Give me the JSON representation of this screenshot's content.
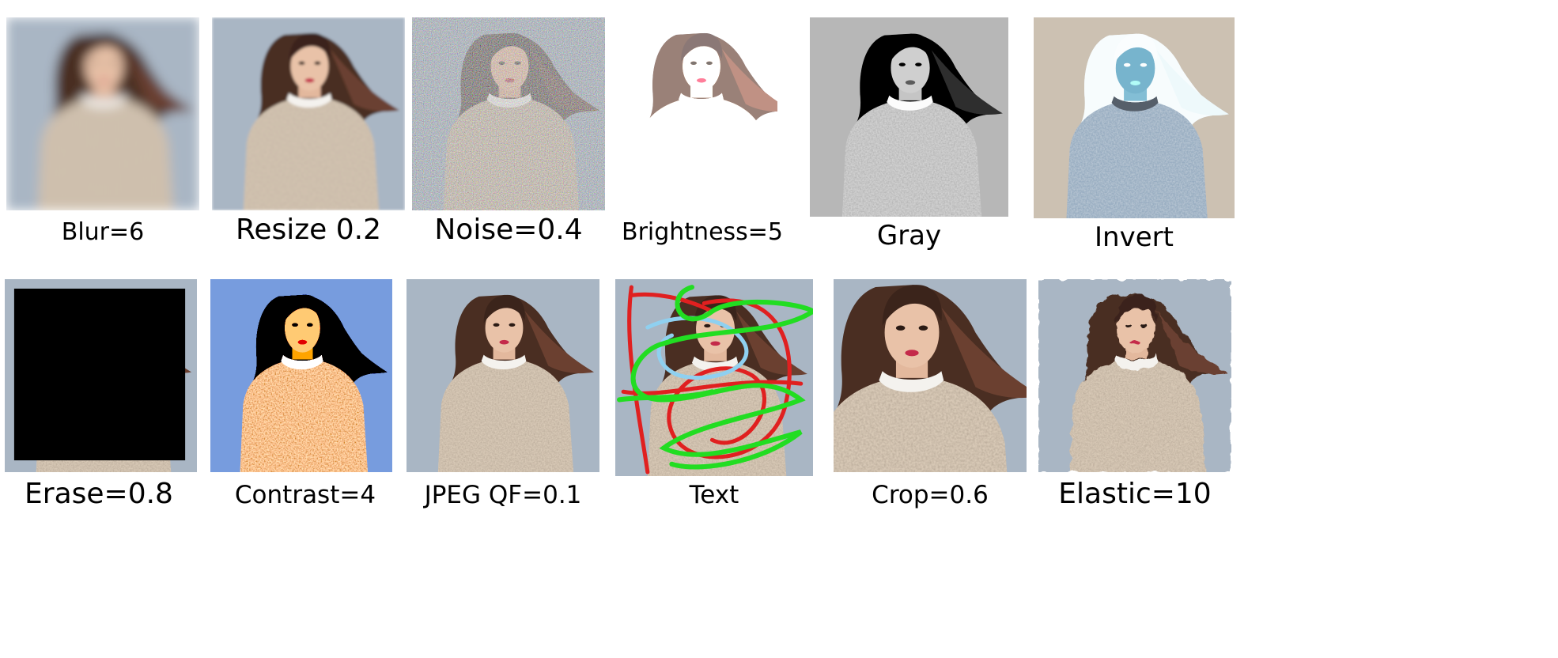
{
  "figure": {
    "rows": [
      {
        "panels": [
          {
            "id": "blur",
            "label": "Blur=6"
          },
          {
            "id": "resize",
            "label": "Resize 0.2"
          },
          {
            "id": "noise",
            "label": "Noise=0.4"
          },
          {
            "id": "brightness",
            "label": "Brightness=5"
          },
          {
            "id": "gray",
            "label": "Gray"
          },
          {
            "id": "invert",
            "label": "Invert"
          }
        ]
      },
      {
        "panels": [
          {
            "id": "erase",
            "label": "Erase=0.8"
          },
          {
            "id": "contrast",
            "label": "Contrast=4"
          },
          {
            "id": "jpeg",
            "label": "JPEG QF=0.1"
          },
          {
            "id": "text",
            "label": "Text"
          },
          {
            "id": "crop",
            "label": "Crop=0.6"
          },
          {
            "id": "elastic",
            "label": "Elastic=10"
          }
        ]
      }
    ]
  },
  "colors": {
    "background_blue_gray": "#a9b6c4",
    "hair_brown": "#4a2e22",
    "sweater_beige": "#d8c9b6",
    "skin": "#e9c2a8",
    "erase_black": "#000000",
    "scribble_red": "#e02020",
    "scribble_green": "#22dd22",
    "scribble_blue": "#8fd0f0"
  }
}
